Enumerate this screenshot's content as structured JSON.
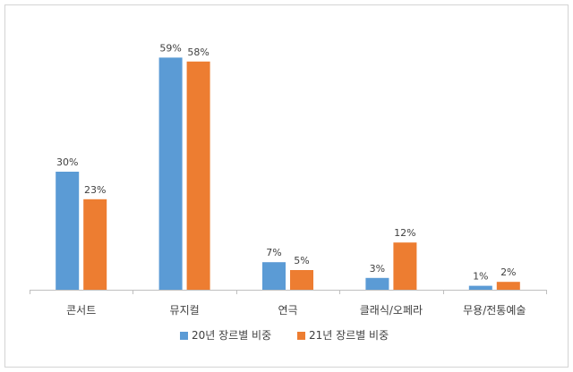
{
  "chart_data": {
    "type": "bar",
    "categories": [
      "콘서트",
      "뮤지컬",
      "연극",
      "클래식/오페라",
      "무용/전통예술"
    ],
    "series": [
      {
        "name": "20년 장르별 비중",
        "values": [
          30,
          59,
          7,
          3,
          1
        ],
        "labels": [
          "30%",
          "59%",
          "7%",
          "3%",
          "1%"
        ],
        "color": "#5b9bd5"
      },
      {
        "name": "21년 장르별 비중",
        "values": [
          23,
          58,
          5,
          12,
          2
        ],
        "labels": [
          "23%",
          "58%",
          "5%",
          "12%",
          "2%"
        ],
        "color": "#ed7d31"
      }
    ],
    "ylim": [
      0,
      60
    ],
    "grid": false,
    "legend_position": "bottom"
  }
}
